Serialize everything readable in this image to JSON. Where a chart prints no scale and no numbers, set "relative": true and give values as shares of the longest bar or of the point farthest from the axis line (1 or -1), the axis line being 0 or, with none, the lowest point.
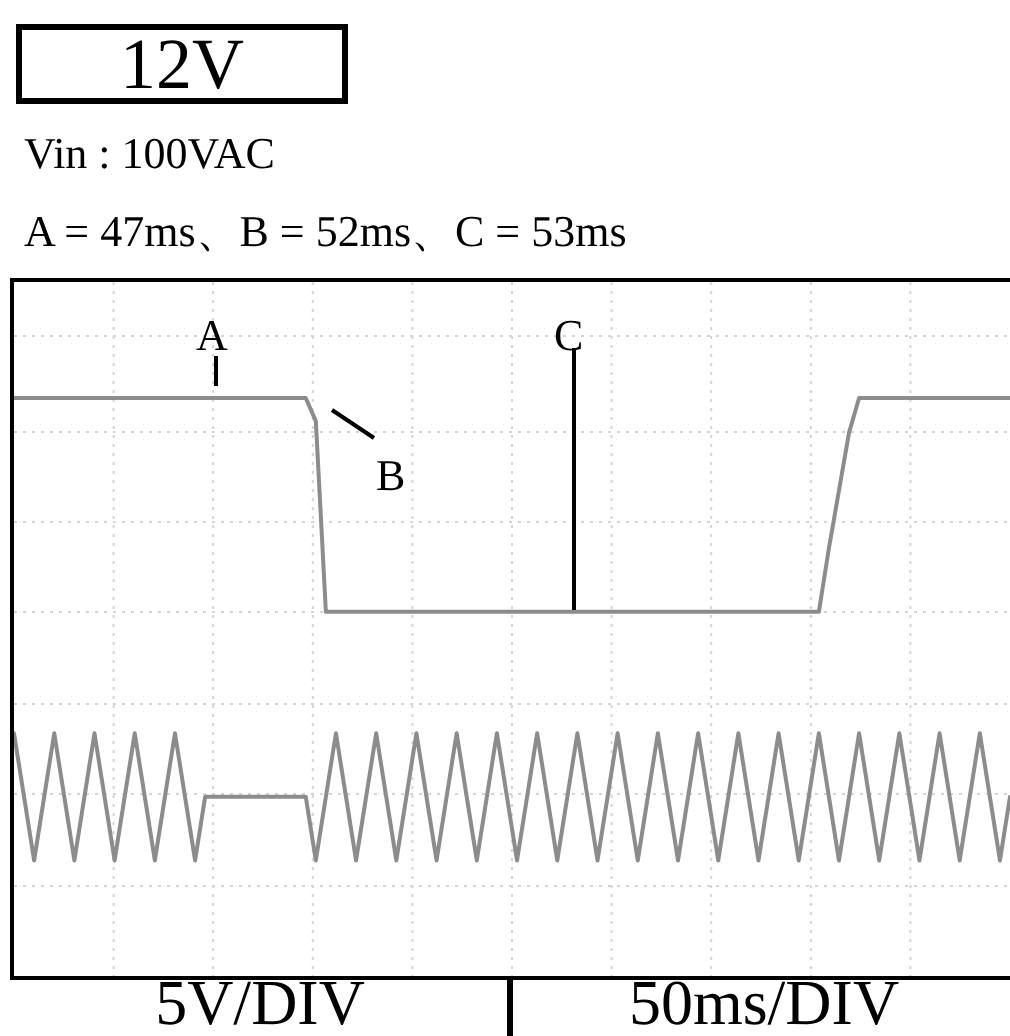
{
  "chart_data": {
    "type": "line",
    "title": "12V",
    "subtitle": "Vin : 100VAC",
    "relative": true,
    "grid": true,
    "marker": "none",
    "line_style": "solid",
    "annotations": [
      "A = 47ms、B = 52ms、C = 53ms",
      "A",
      "B",
      "C",
      "5V/DIV",
      "50ms/DIV"
    ],
    "categories": [
      null,
      null,
      null,
      null,
      null,
      null,
      null,
      null,
      null,
      null,
      null,
      null,
      null,
      null,
      null,
      null,
      null,
      null,
      null,
      null,
      null,
      null,
      null,
      null,
      null,
      null,
      null,
      null,
      null,
      null,
      null,
      null,
      null,
      null,
      null,
      null,
      null,
      null,
      null,
      null,
      null,
      null,
      null,
      null,
      null,
      null,
      null,
      null,
      null,
      null,
      null,
      null,
      null,
      null,
      null,
      null,
      null,
      null,
      null,
      null,
      null,
      null,
      null,
      null,
      null,
      null,
      null,
      null,
      null,
      null,
      null,
      null,
      null,
      null,
      null,
      null,
      null,
      null,
      null,
      null,
      null,
      null,
      null,
      null,
      null,
      null,
      null,
      null,
      null,
      null,
      null,
      null,
      null,
      null,
      null,
      null,
      null,
      null,
      null,
      null
    ],
    "series": [
      {
        "color": "#8c8c8c",
        "values": [
          1,
          1,
          1,
          1,
          1,
          1,
          1,
          1,
          1,
          1,
          1,
          1,
          1,
          1,
          1,
          1,
          1,
          1,
          1,
          1,
          1,
          1,
          1,
          1,
          1,
          1,
          1,
          1,
          1,
          1,
          0.96,
          0.63,
          0.63,
          0.63,
          0.63,
          0.63,
          0.63,
          0.63,
          0.63,
          0.63,
          0.63,
          0.63,
          0.63,
          0.63,
          0.63,
          0.63,
          0.63,
          0.63,
          0.63,
          0.63,
          0.63,
          0.63,
          0.63,
          0.63,
          0.63,
          0.63,
          0.63,
          0.63,
          0.63,
          0.63,
          0.63,
          0.63,
          0.63,
          0.63,
          0.63,
          0.63,
          0.63,
          0.63,
          0.63,
          0.63,
          0.63,
          0.63,
          0.63,
          0.63,
          0.63,
          0.63,
          0.63,
          0.63,
          0.63,
          0.63,
          0.63,
          0.74,
          0.84,
          0.94,
          1,
          1,
          1,
          1,
          1,
          1,
          1,
          1,
          1,
          1,
          1,
          1,
          1,
          1,
          1,
          1
        ]
      },
      {
        "color": "#8c8c8c",
        "values": [
          0.42,
          0.31,
          0.2,
          0.31,
          0.42,
          0.31,
          0.2,
          0.31,
          0.42,
          0.31,
          0.2,
          0.31,
          0.42,
          0.31,
          0.2,
          0.31,
          0.42,
          0.31,
          0.2,
          0.31,
          0.31,
          0.31,
          0.31,
          0.31,
          0.31,
          0.31,
          0.31,
          0.31,
          0.31,
          0.31,
          0.2,
          0.31,
          0.42,
          0.31,
          0.2,
          0.31,
          0.42,
          0.31,
          0.2,
          0.31,
          0.42,
          0.31,
          0.2,
          0.31,
          0.42,
          0.31,
          0.2,
          0.31,
          0.42,
          0.31,
          0.2,
          0.31,
          0.42,
          0.31,
          0.2,
          0.31,
          0.42,
          0.31,
          0.2,
          0.31,
          0.42,
          0.31,
          0.2,
          0.31,
          0.42,
          0.31,
          0.2,
          0.31,
          0.42,
          0.31,
          0.2,
          0.31,
          0.42,
          0.31,
          0.2,
          0.31,
          0.42,
          0.31,
          0.2,
          0.31,
          0.42,
          0.31,
          0.2,
          0.31,
          0.42,
          0.31,
          0.2,
          0.31,
          0.42,
          0.31,
          0.2,
          0.31,
          0.42,
          0.31,
          0.2,
          0.31,
          0.42,
          0.31,
          0.2,
          0.31
        ]
      }
    ]
  }
}
